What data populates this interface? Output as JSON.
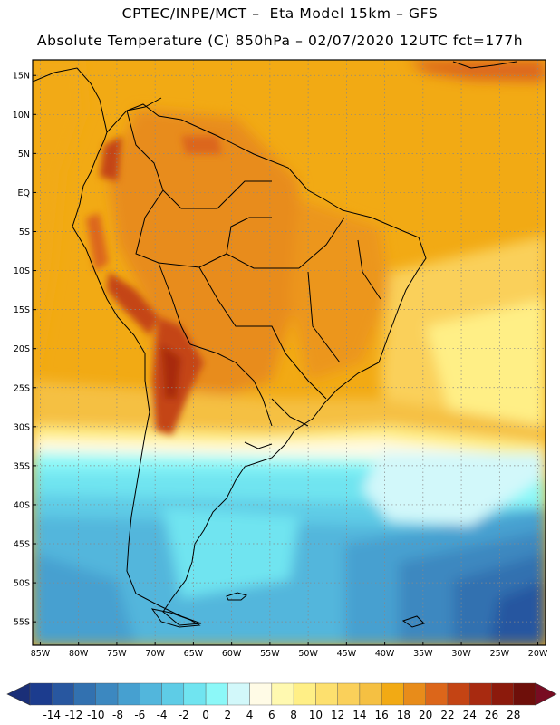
{
  "title": {
    "line1": "CPTEC/INPE/MCT –  Eta Model 15km – GFS",
    "line2": "Absolute Temperature (C) 850hPa – 02/07/2020 12UTC fct=177h"
  },
  "map": {
    "lat_labels": [
      "15N",
      "10N",
      "5N",
      "EQ",
      "5S",
      "10S",
      "15S",
      "20S",
      "25S",
      "30S",
      "35S",
      "40S",
      "45S",
      "50S",
      "55S"
    ],
    "lat_values": [
      15,
      10,
      5,
      0,
      -5,
      -10,
      -15,
      -20,
      -25,
      -30,
      -35,
      -40,
      -45,
      -50,
      -55
    ],
    "lon_labels": [
      "85W",
      "80W",
      "75W",
      "70W",
      "65W",
      "60W",
      "55W",
      "50W",
      "45W",
      "40W",
      "35W",
      "30W",
      "25W",
      "20W"
    ],
    "lon_values": [
      -85,
      -80,
      -75,
      -70,
      -65,
      -60,
      -55,
      -50,
      -45,
      -40,
      -35,
      -30,
      -25,
      -20
    ],
    "lon_range": [
      -86,
      -19
    ],
    "lat_range": [
      -58,
      17
    ],
    "gridlines": "dotted"
  },
  "colorbar": {
    "labels": [
      "-14",
      "-12",
      "-10",
      "-8",
      "-6",
      "-4",
      "-2",
      "0",
      "2",
      "4",
      "6",
      "8",
      "10",
      "12",
      "14",
      "16",
      "18",
      "20",
      "22",
      "24",
      "26",
      "28"
    ],
    "colors": [
      "#1c3c8e",
      "#2857a0",
      "#3271b0",
      "#3c88c0",
      "#46a0d0",
      "#52b6dc",
      "#5ecce6",
      "#70e4f0",
      "#8cf8f8",
      "#d2f8fa",
      "#fffbe6",
      "#fff9b0",
      "#ffef86",
      "#fde06e",
      "#fad05a",
      "#f5c042",
      "#f2aa14",
      "#e88c1a",
      "#dc661a",
      "#c44414",
      "#a82a10",
      "#8c1a0c",
      "#6e0f0a"
    ],
    "under_color": "#1a2f78",
    "over_color": "#780c22"
  }
}
